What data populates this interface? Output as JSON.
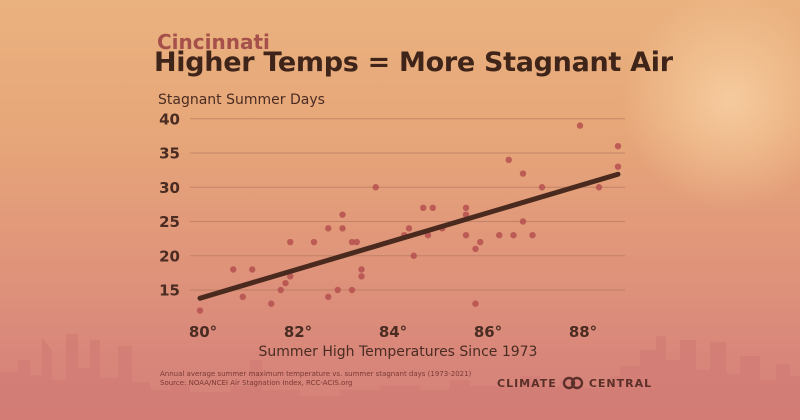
{
  "header": {
    "city": "Cincinnati",
    "title": "Higher Temps = More Stagnant Air"
  },
  "footer": {
    "note_line1": "Annual average summer maximum temperature vs. summer stagnant days (1973-2021)",
    "note_line2": "Source: NOAA/NCEI Air Stagnation Index, RCC-ACIS.org",
    "logo_left": "CLIMATE",
    "logo_right": "CENTRAL",
    "logo_icon": "infinity-rings-icon"
  },
  "colors": {
    "city": "#a5504a",
    "title": "#3f2419",
    "points": "#b5504f",
    "trend": "#4a2a1e"
  },
  "chart_data": {
    "type": "scatter",
    "title": "Higher Temps = More Stagnant Air",
    "subtitle": "Cincinnati",
    "xlabel": "Summer High Temperatures Since 1973",
    "ylabel": "Stagnant Summer Days",
    "xlim": [
      80,
      89
    ],
    "ylim": [
      12,
      41
    ],
    "x_ticks": [
      80,
      82,
      84,
      86,
      88
    ],
    "x_tick_labels": [
      "80°",
      "82°",
      "84°",
      "86°",
      "88°"
    ],
    "y_ticks": [
      15,
      20,
      25,
      30,
      35,
      40
    ],
    "y_tick_labels": [
      "15",
      "20",
      "25",
      "30",
      "35",
      "40"
    ],
    "grid": "horizontal",
    "points": [
      [
        80.0,
        12
      ],
      [
        80.7,
        18
      ],
      [
        80.9,
        14
      ],
      [
        81.1,
        18
      ],
      [
        81.5,
        13
      ],
      [
        81.7,
        15
      ],
      [
        81.8,
        16
      ],
      [
        81.9,
        17
      ],
      [
        81.9,
        22
      ],
      [
        82.4,
        22
      ],
      [
        82.7,
        14
      ],
      [
        82.7,
        24
      ],
      [
        82.9,
        15
      ],
      [
        83.0,
        24
      ],
      [
        83.0,
        26
      ],
      [
        83.2,
        15
      ],
      [
        83.2,
        22
      ],
      [
        83.3,
        22
      ],
      [
        83.4,
        18
      ],
      [
        83.4,
        17
      ],
      [
        83.7,
        30
      ],
      [
        84.3,
        23
      ],
      [
        84.4,
        24
      ],
      [
        84.5,
        20
      ],
      [
        84.7,
        27
      ],
      [
        84.8,
        23
      ],
      [
        84.9,
        27
      ],
      [
        85.1,
        24
      ],
      [
        85.6,
        27
      ],
      [
        85.6,
        26
      ],
      [
        85.6,
        23
      ],
      [
        85.8,
        21
      ],
      [
        85.8,
        13
      ],
      [
        85.9,
        22
      ],
      [
        86.3,
        23
      ],
      [
        86.5,
        34
      ],
      [
        86.6,
        23
      ],
      [
        86.8,
        32
      ],
      [
        86.8,
        25
      ],
      [
        87.0,
        23
      ],
      [
        87.2,
        30
      ],
      [
        88.0,
        39
      ],
      [
        88.4,
        30
      ],
      [
        88.8,
        36
      ],
      [
        88.8,
        33
      ]
    ],
    "trendline": {
      "x": [
        80.0,
        88.8
      ],
      "y": [
        13.8,
        31.9
      ]
    }
  }
}
